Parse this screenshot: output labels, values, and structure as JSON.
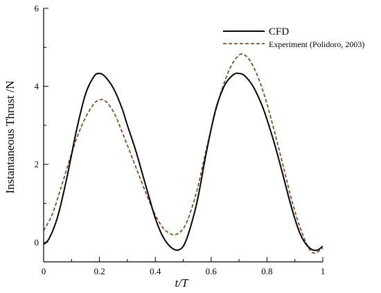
{
  "chart_data": {
    "type": "line",
    "title": "",
    "xlabel": "t/T",
    "ylabel": "Instantaneous Thrust /N",
    "xlim": [
      0,
      1
    ],
    "ylim": [
      -0.5,
      6
    ],
    "xticks": [
      "0",
      "0.2",
      "0.4",
      "0.6",
      "0.8",
      "1"
    ],
    "yticks": [
      "0",
      "2",
      "4",
      "6"
    ],
    "legend_position": "top-right",
    "grid": false,
    "series": [
      {
        "name": "CFD",
        "color": "#000000",
        "style": "solid",
        "x": [
          0,
          0.02,
          0.05,
          0.08,
          0.1,
          0.12,
          0.15,
          0.18,
          0.2,
          0.22,
          0.25,
          0.28,
          0.3,
          0.33,
          0.36,
          0.38,
          0.4,
          0.42,
          0.44,
          0.46,
          0.48,
          0.5,
          0.52,
          0.55,
          0.58,
          0.6,
          0.62,
          0.65,
          0.68,
          0.7,
          0.72,
          0.75,
          0.78,
          0.8,
          0.83,
          0.86,
          0.88,
          0.9,
          0.92,
          0.94,
          0.96,
          0.98,
          1.0
        ],
        "y": [
          -0.05,
          0.1,
          0.65,
          1.55,
          2.25,
          2.95,
          3.8,
          4.25,
          4.33,
          4.25,
          3.95,
          3.45,
          3.0,
          2.35,
          1.6,
          1.1,
          0.62,
          0.25,
          0.0,
          -0.15,
          -0.2,
          -0.1,
          0.25,
          1.05,
          2.2,
          2.9,
          3.5,
          4.05,
          4.3,
          4.33,
          4.27,
          4.0,
          3.55,
          3.15,
          2.45,
          1.65,
          1.1,
          0.6,
          0.2,
          -0.05,
          -0.18,
          -0.2,
          -0.1
        ]
      },
      {
        "name": "Experiment (Polidoro, 2003)",
        "color": "#8a4a1c",
        "style": "dashed",
        "x": [
          0,
          0.03,
          0.06,
          0.09,
          0.12,
          0.15,
          0.18,
          0.2,
          0.22,
          0.25,
          0.28,
          0.31,
          0.34,
          0.37,
          0.4,
          0.43,
          0.46,
          0.48,
          0.5,
          0.52,
          0.55,
          0.58,
          0.61,
          0.64,
          0.67,
          0.7,
          0.72,
          0.74,
          0.77,
          0.8,
          0.83,
          0.86,
          0.89,
          0.92,
          0.95,
          0.97,
          0.99,
          1.0
        ],
        "y": [
          0.3,
          0.7,
          1.35,
          2.05,
          2.7,
          3.2,
          3.55,
          3.65,
          3.63,
          3.35,
          2.85,
          2.3,
          1.75,
          1.2,
          0.7,
          0.35,
          0.2,
          0.22,
          0.35,
          0.65,
          1.35,
          2.3,
          3.2,
          3.95,
          4.5,
          4.8,
          4.8,
          4.65,
          4.2,
          3.55,
          2.75,
          1.9,
          1.05,
          0.35,
          -0.15,
          -0.28,
          -0.2,
          -0.15
        ]
      }
    ]
  }
}
